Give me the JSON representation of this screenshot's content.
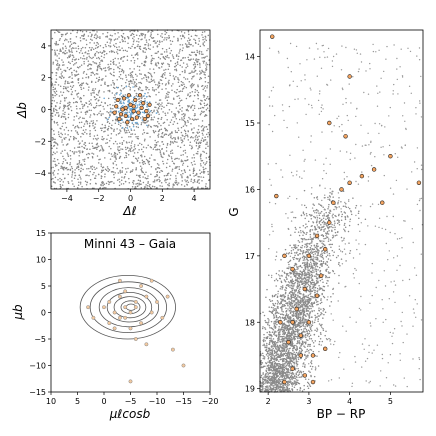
{
  "chart_data": [
    {
      "type": "scatter",
      "panel": "spatial",
      "xlabel": "Δℓ",
      "ylabel": "Δb",
      "xlim": [
        -5,
        5
      ],
      "ylim": [
        -5,
        5
      ],
      "xticks": [
        "−4",
        "−2",
        "0",
        "2",
        "4"
      ],
      "yticks": [
        "4",
        "2",
        "0",
        "−2",
        "−4"
      ],
      "field_density": "uniform random field, ~3000 grey stars",
      "members": [
        [
          0.2,
          0.2
        ],
        [
          -0.3,
          0.1
        ],
        [
          0.5,
          -0.2
        ],
        [
          -0.6,
          -0.3
        ],
        [
          0.8,
          0.4
        ],
        [
          -0.4,
          0.7
        ],
        [
          0.1,
          -0.6
        ],
        [
          1.0,
          -0.1
        ],
        [
          -0.9,
          0.2
        ],
        [
          0.3,
          0.6
        ],
        [
          -0.2,
          -0.8
        ],
        [
          0.6,
          0.9
        ],
        [
          -0.7,
          -0.6
        ],
        [
          1.2,
          0.3
        ],
        [
          0.0,
          0.3
        ],
        [
          -0.5,
          0.0
        ],
        [
          0.4,
          -0.5
        ],
        [
          0.9,
          -0.6
        ],
        [
          -0.1,
          0.9
        ],
        [
          -1.0,
          -0.2
        ],
        [
          0.7,
          0.1
        ],
        [
          -0.3,
          -0.4
        ],
        [
          0.2,
          -0.1
        ],
        [
          1.1,
          -0.4
        ],
        [
          -0.8,
          0.6
        ]
      ],
      "members_color": "#f4a460"
    },
    {
      "type": "scatter",
      "panel": "proper-motion",
      "title": "Minni 43  –  Gaia",
      "xlabel": "μℓcosb",
      "ylabel": "μb",
      "xlim": [
        10,
        -20
      ],
      "ylim": [
        -15,
        15
      ],
      "xticks": [
        "10",
        "5",
        "0",
        "−5",
        "−10",
        "−15",
        "−20"
      ],
      "yticks": [
        "15",
        "10",
        "5",
        "0",
        "−5",
        "−10",
        "−15"
      ],
      "contour_center": [
        -4.5,
        1.0
      ],
      "members": [
        [
          -4,
          1
        ],
        [
          -6,
          2
        ],
        [
          -3,
          -1
        ],
        [
          -8,
          3
        ],
        [
          -2,
          0
        ],
        [
          -5,
          -3
        ],
        [
          -7,
          -2
        ],
        [
          -1,
          2
        ],
        [
          -9,
          0
        ],
        [
          -4,
          4
        ],
        [
          -6,
          -5
        ],
        [
          0,
          1
        ],
        [
          -10,
          2
        ],
        [
          -3,
          3
        ],
        [
          -5,
          0
        ],
        [
          -11,
          -1
        ],
        [
          -2,
          -3
        ],
        [
          -7,
          5
        ],
        [
          -12,
          3
        ],
        [
          2,
          -1
        ],
        [
          -8,
          -6
        ],
        [
          3,
          1
        ],
        [
          -13,
          -7
        ],
        [
          -5,
          -13
        ],
        [
          -15,
          -10
        ],
        [
          -9,
          6
        ],
        [
          -1,
          -2
        ],
        [
          -6,
          1
        ],
        [
          -4,
          -1
        ],
        [
          -3,
          6
        ]
      ],
      "members_color": "#f4a460"
    },
    {
      "type": "scatter",
      "panel": "cmd",
      "xlabel": "BP − RP",
      "ylabel": "G",
      "xlim": [
        1.8,
        5.8
      ],
      "ylim": [
        19.05,
        13.6
      ],
      "xticks": [
        "2",
        "3",
        "4",
        "5"
      ],
      "yticks": [
        "14",
        "15",
        "16",
        "17",
        "18",
        "19"
      ],
      "members": [
        [
          2.4,
          18.9
        ],
        [
          2.6,
          18.7
        ],
        [
          2.9,
          18.8
        ],
        [
          3.1,
          18.5
        ],
        [
          2.5,
          18.3
        ],
        [
          2.8,
          18.2
        ],
        [
          3.0,
          18.0
        ],
        [
          2.7,
          17.8
        ],
        [
          3.2,
          17.6
        ],
        [
          2.9,
          17.5
        ],
        [
          3.3,
          17.3
        ],
        [
          3.0,
          17.0
        ],
        [
          3.4,
          16.9
        ],
        [
          3.2,
          16.7
        ],
        [
          3.5,
          16.5
        ],
        [
          3.6,
          16.2
        ],
        [
          3.8,
          16.0
        ],
        [
          4.0,
          15.9
        ],
        [
          4.3,
          15.8
        ],
        [
          4.6,
          15.7
        ],
        [
          5.0,
          15.5
        ],
        [
          5.7,
          15.9
        ],
        [
          3.5,
          15.0
        ],
        [
          3.9,
          15.2
        ],
        [
          2.2,
          16.1
        ],
        [
          2.6,
          17.2
        ],
        [
          2.3,
          18.0
        ],
        [
          2.8,
          18.5
        ],
        [
          3.4,
          18.4
        ],
        [
          2.1,
          13.7
        ],
        [
          4.0,
          14.3
        ],
        [
          4.8,
          16.2
        ],
        [
          2.4,
          17.0
        ],
        [
          3.1,
          18.9
        ],
        [
          2.6,
          18.0
        ]
      ],
      "members_color": "#f4a460"
    }
  ]
}
